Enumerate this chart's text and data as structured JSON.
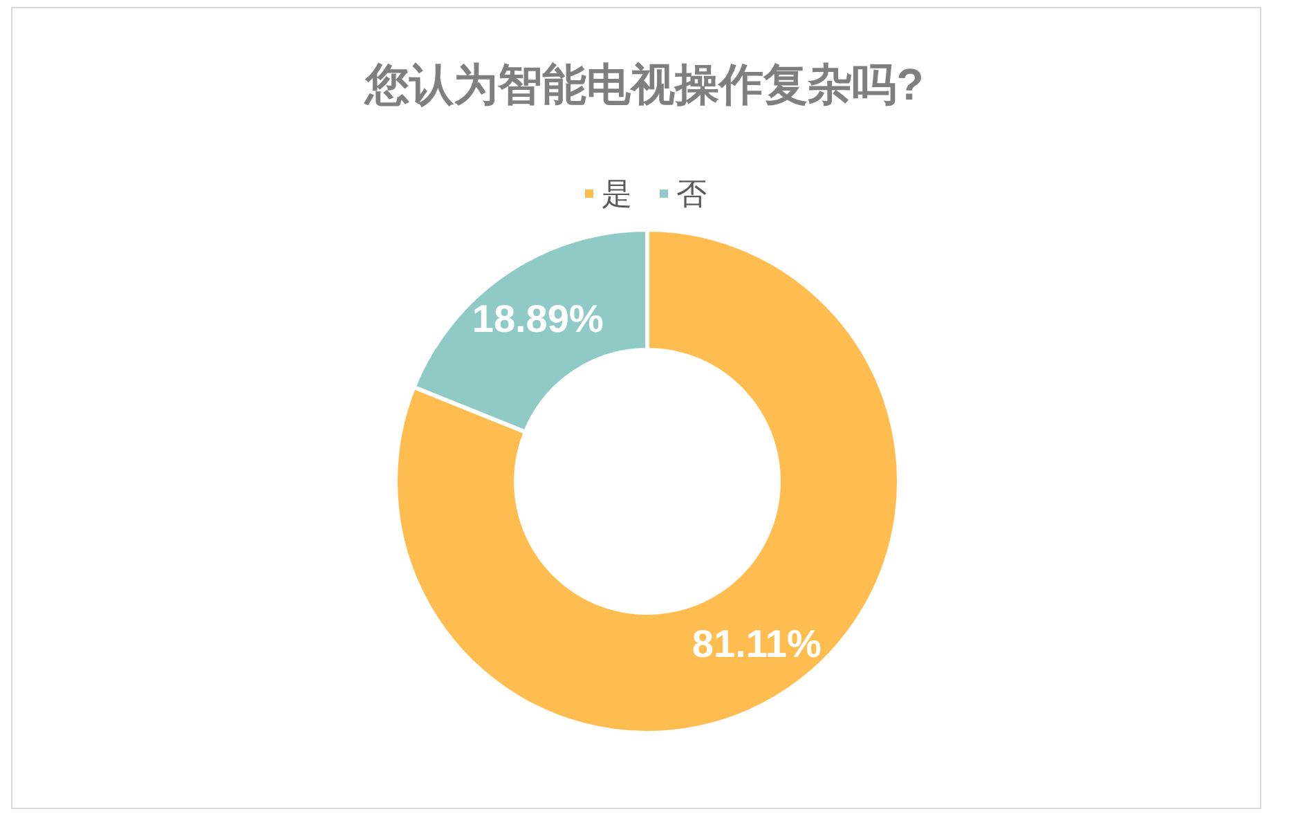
{
  "chart_data": {
    "type": "donut",
    "title": "您认为智能电视操作复杂吗?",
    "categories": [
      "是",
      "否"
    ],
    "values": [
      81.11,
      18.89
    ],
    "colors": [
      "#ffbd4f",
      "#8fcac6"
    ],
    "value_labels": [
      "81.11%",
      "18.89%"
    ],
    "legend": "top"
  }
}
